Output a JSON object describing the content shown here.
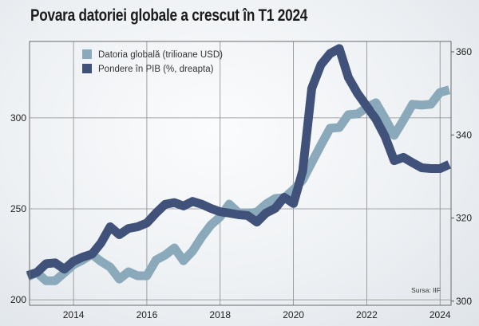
{
  "chart_data": {
    "type": "line",
    "title": "Povara datoriei globale a crescut în T1 2024",
    "source": "Sursa: IIF",
    "x": [
      2012.75,
      2013.0,
      2013.25,
      2013.5,
      2013.75,
      2014.0,
      2014.25,
      2014.5,
      2014.75,
      2015.0,
      2015.25,
      2015.5,
      2015.75,
      2016.0,
      2016.25,
      2016.5,
      2016.75,
      2017.0,
      2017.25,
      2017.5,
      2017.75,
      2018.0,
      2018.25,
      2018.5,
      2018.75,
      2019.0,
      2019.25,
      2019.5,
      2019.75,
      2020.0,
      2020.25,
      2020.5,
      2020.75,
      2021.0,
      2021.25,
      2021.5,
      2021.75,
      2022.0,
      2022.25,
      2022.5,
      2022.75,
      2023.0,
      2023.25,
      2023.5,
      2023.75,
      2024.0,
      2024.25
    ],
    "xlim": [
      2012.8,
      2024.3
    ],
    "x_ticks": [
      "2014",
      "2016",
      "2018",
      "2020",
      "2022",
      "2024"
    ],
    "x_tick_values": [
      2014,
      2016,
      2018,
      2020,
      2022,
      2024
    ],
    "y_left": {
      "lim": [
        197,
        342
      ],
      "ticks": [
        "200",
        "250",
        "300"
      ],
      "tick_values": [
        200,
        250,
        300
      ]
    },
    "y_right": {
      "lim": [
        299,
        362.5
      ],
      "ticks": [
        "300",
        "320",
        "340",
        "360"
      ],
      "tick_values": [
        300,
        320,
        340,
        360
      ]
    },
    "grid": true,
    "legend_position": "top-left",
    "series": [
      {
        "name": "Datoria globală (trilioane USD)",
        "axis": "left",
        "color": "#8aaabb",
        "values": [
          212.7,
          214.9,
          210.5,
          210.5,
          214.9,
          219.3,
          221.9,
          225.0,
          221.1,
          218.0,
          211.4,
          215.4,
          213.2,
          213.2,
          221.9,
          224.6,
          228.5,
          221.5,
          226.8,
          234.6,
          241.2,
          245.6,
          252.6,
          247.8,
          247.4,
          248.2,
          252.6,
          255.7,
          256.1,
          260.5,
          265.8,
          275.4,
          285.1,
          294.3,
          294.7,
          301.8,
          302.2,
          305.7,
          308.3,
          299.6,
          290.4,
          298.7,
          307.5,
          307.0,
          307.5,
          314.0,
          315.4
        ]
      },
      {
        "name": "Pondere în PIB (%, dreapta)",
        "axis": "right",
        "color": "#40527a",
        "values": [
          306.2,
          306.9,
          309.0,
          309.2,
          307.7,
          309.6,
          310.6,
          311.3,
          314.0,
          317.9,
          316.0,
          317.5,
          317.9,
          318.8,
          321.2,
          323.3,
          323.7,
          322.9,
          324.0,
          323.3,
          322.3,
          321.5,
          321.2,
          320.8,
          320.6,
          319.0,
          321.2,
          322.3,
          325.0,
          323.5,
          331.3,
          351.2,
          356.9,
          359.6,
          360.8,
          353.8,
          350.0,
          346.9,
          343.8,
          339.6,
          333.8,
          334.6,
          333.3,
          332.1,
          331.9,
          331.9,
          332.9
        ]
      }
    ]
  }
}
